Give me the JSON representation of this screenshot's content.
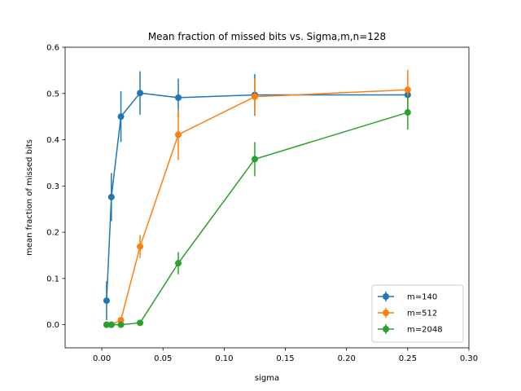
{
  "chart_data": {
    "type": "line",
    "title": "Mean fraction of missed bits vs. Sigma,m,n=128",
    "xlabel": "sigma",
    "ylabel": "mean fraction of missed bits",
    "xlim": [
      -0.03,
      0.3
    ],
    "ylim": [
      -0.05,
      0.6
    ],
    "xticks": [
      0.0,
      0.05,
      0.1,
      0.15,
      0.2,
      0.25,
      0.3
    ],
    "xtick_labels": [
      "0.00",
      "0.05",
      "0.10",
      "0.15",
      "0.20",
      "0.25",
      "0.30"
    ],
    "yticks": [
      0.0,
      0.1,
      0.2,
      0.3,
      0.4,
      0.5,
      0.6
    ],
    "ytick_labels": [
      "0.0",
      "0.1",
      "0.2",
      "0.3",
      "0.4",
      "0.5",
      "0.6"
    ],
    "grid": false,
    "legend_position": "lower-right",
    "series": [
      {
        "name": "m=140",
        "color": "#1f77b4",
        "x": [
          0.0039,
          0.0078,
          0.0156,
          0.03125,
          0.0625,
          0.125,
          0.25
        ],
        "y": [
          0.052,
          0.276,
          0.45,
          0.501,
          0.491,
          0.497,
          0.497
        ],
        "err": [
          0.042,
          0.052,
          0.055,
          0.047,
          0.041,
          0.045,
          0.013
        ]
      },
      {
        "name": "m=512",
        "color": "#ff7f0e",
        "x": [
          0.0039,
          0.0078,
          0.0156,
          0.03125,
          0.0625,
          0.125,
          0.25
        ],
        "y": [
          0.0,
          0.0,
          0.01,
          0.169,
          0.411,
          0.493,
          0.508
        ],
        "err": [
          0.0,
          0.0,
          0.006,
          0.025,
          0.055,
          0.04,
          0.043
        ]
      },
      {
        "name": "m=2048",
        "color": "#2ca02c",
        "x": [
          0.0039,
          0.0078,
          0.0156,
          0.03125,
          0.0625,
          0.125,
          0.25
        ],
        "y": [
          0.0,
          0.0,
          0.0,
          0.004,
          0.133,
          0.358,
          0.459
        ],
        "err": [
          0.0,
          0.0,
          0.003,
          0.004,
          0.024,
          0.037,
          0.037
        ]
      }
    ]
  }
}
